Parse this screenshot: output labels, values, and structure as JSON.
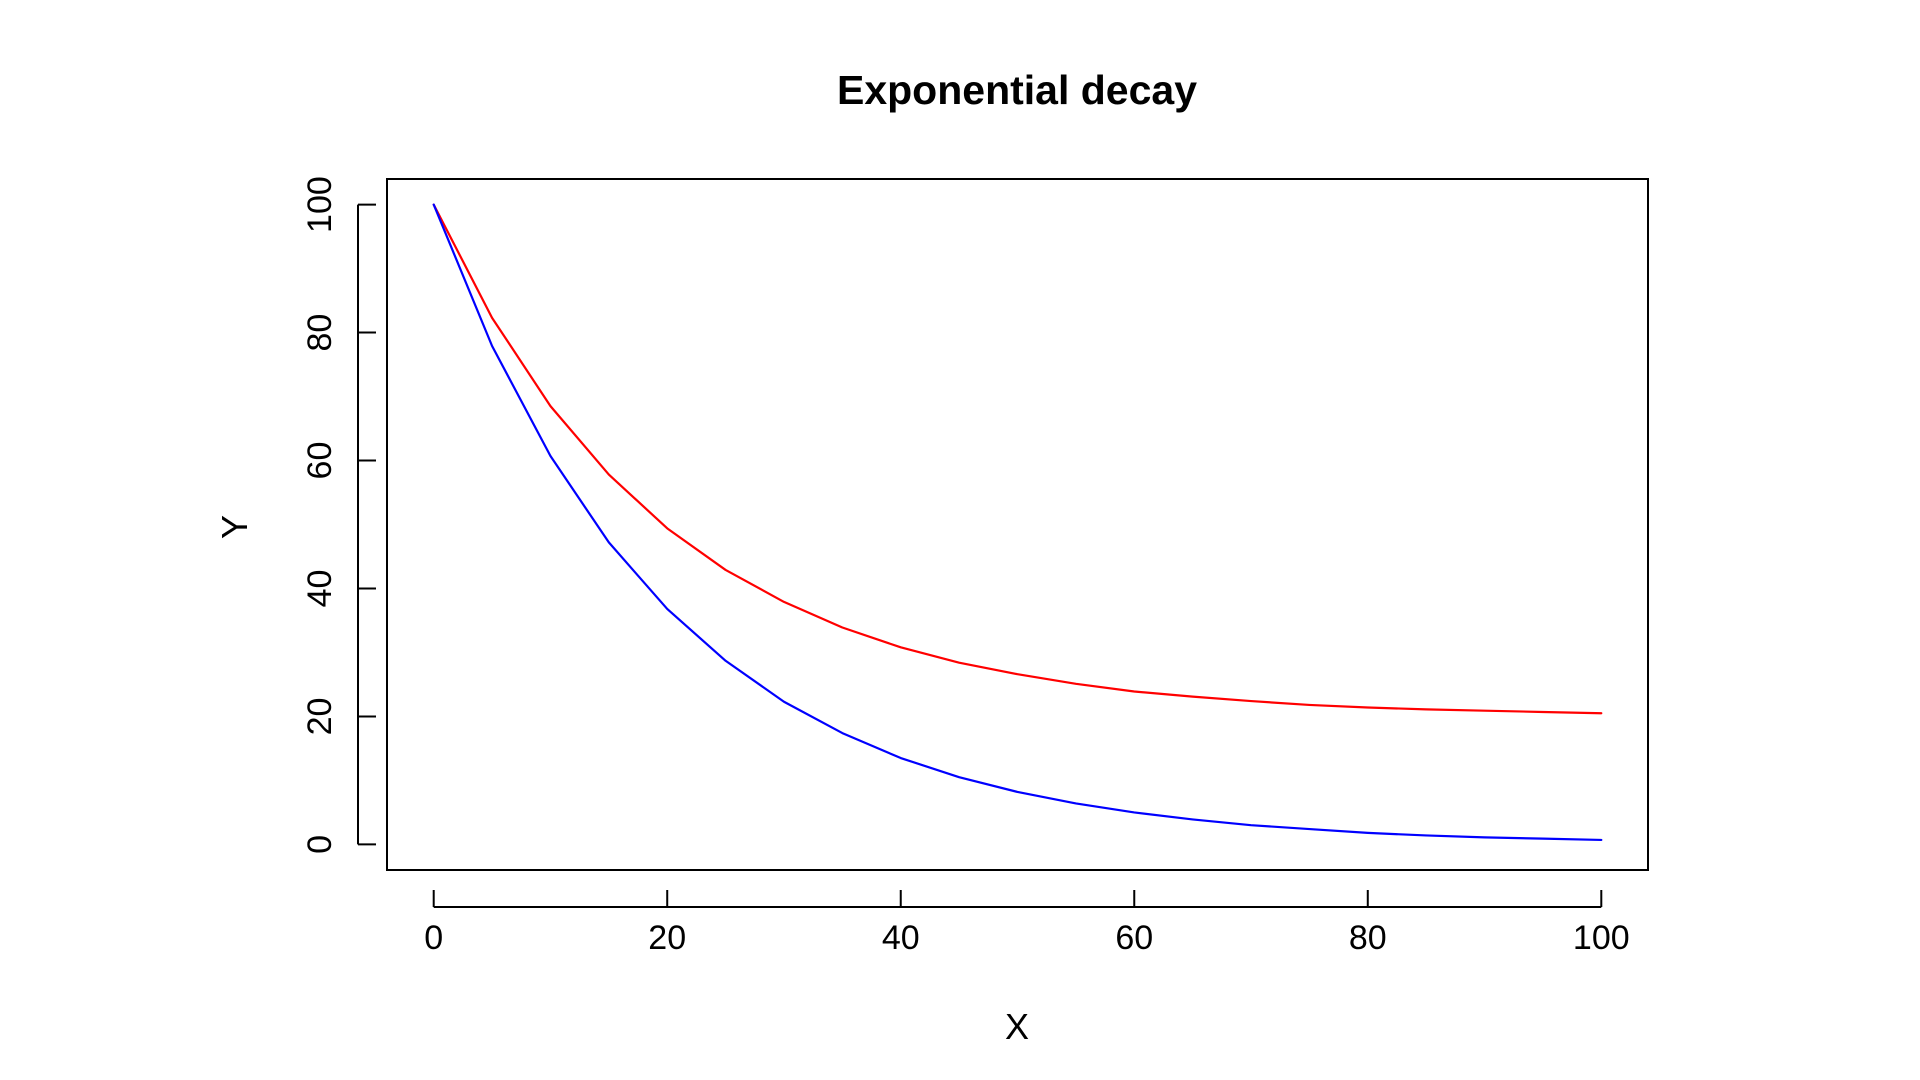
{
  "chart_data": {
    "type": "line",
    "title": "Exponential decay",
    "xlabel": "X",
    "ylabel": "Y",
    "xlim": [
      -4,
      104
    ],
    "ylim": [
      -4,
      104
    ],
    "x_ticks": [
      0,
      20,
      40,
      60,
      80,
      100
    ],
    "y_ticks": [
      0,
      20,
      40,
      60,
      80,
      100
    ],
    "x_tick_labels": [
      "0",
      "20",
      "40",
      "60",
      "80",
      "100"
    ],
    "y_tick_labels": [
      "0",
      "20",
      "40",
      "60",
      "80",
      "100"
    ],
    "grid": false,
    "legend": "none",
    "x": [
      0,
      5,
      10,
      15,
      20,
      25,
      30,
      35,
      40,
      45,
      50,
      55,
      60,
      65,
      70,
      75,
      80,
      85,
      90,
      95,
      100
    ],
    "series": [
      {
        "color": "#ff0000",
        "values": [
          100,
          82.3,
          68.5,
          57.8,
          49.4,
          42.9,
          37.9,
          33.9,
          30.8,
          28.4,
          26.6,
          25.1,
          23.9,
          23.1,
          22.4,
          21.8,
          21.4,
          21.1,
          20.9,
          20.7,
          20.5
        ]
      },
      {
        "color": "#0000ff",
        "values": [
          100,
          77.9,
          60.7,
          47.2,
          36.8,
          28.7,
          22.3,
          17.4,
          13.5,
          10.5,
          8.2,
          6.4,
          5.0,
          3.9,
          3.0,
          2.4,
          1.8,
          1.4,
          1.1,
          0.9,
          0.7
        ]
      }
    ]
  }
}
